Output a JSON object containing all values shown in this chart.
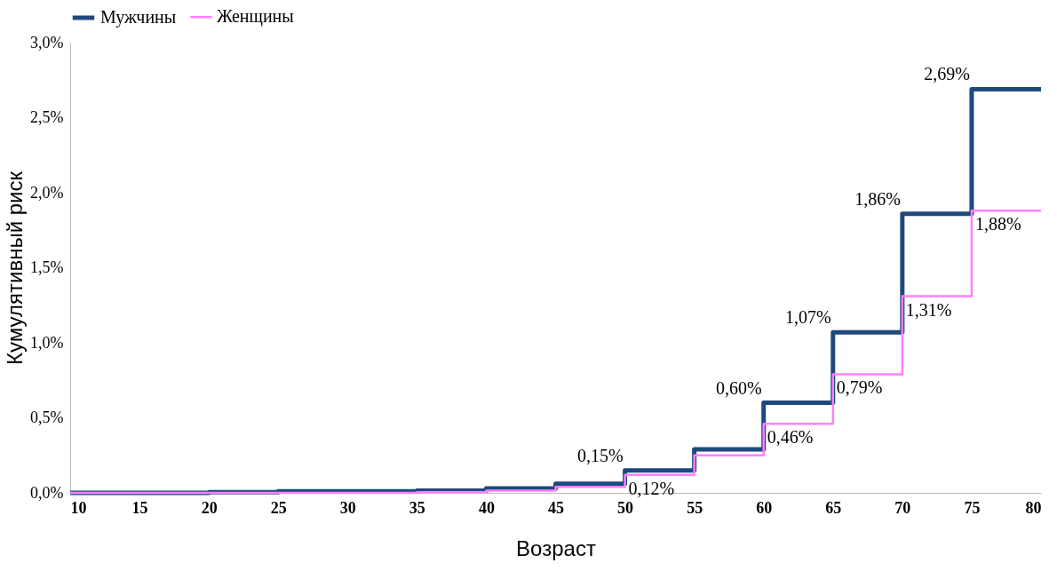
{
  "chart_data": {
    "type": "step",
    "xlabel": "Возраст",
    "ylabel": "Кумулятивный риск",
    "x": [
      10,
      15,
      20,
      25,
      30,
      35,
      40,
      45,
      50,
      55,
      60,
      65,
      70,
      75,
      80
    ],
    "xlim": [
      10,
      80
    ],
    "xticks": [
      10,
      15,
      20,
      25,
      30,
      35,
      40,
      45,
      50,
      55,
      60,
      65,
      70,
      75,
      80
    ],
    "ylim": [
      0,
      3
    ],
    "yticks": [
      {
        "value": 0,
        "label": "0,0%"
      },
      {
        "value": 0.5,
        "label": "0,5%"
      },
      {
        "value": 1,
        "label": "1,0%"
      },
      {
        "value": 1.5,
        "label": "1,5%"
      },
      {
        "value": 2,
        "label": "2,0%"
      },
      {
        "value": 2.5,
        "label": "2,5%"
      },
      {
        "value": 3,
        "label": "3,0%"
      }
    ],
    "grid": false,
    "legend": "top",
    "marker": "none",
    "series": [
      {
        "name": "Мужчины",
        "color": "#1f497d",
        "values": [
          0,
          0,
          0.005,
          0.01,
          0.01,
          0.015,
          0.03,
          0.06,
          0.15,
          0.29,
          0.6,
          1.07,
          1.86,
          2.69,
          2.69
        ],
        "value_labels": [
          null,
          null,
          null,
          null,
          null,
          null,
          null,
          null,
          "0,15%",
          null,
          "0,60%",
          "1,07%",
          "1,86%",
          "2,69%",
          null
        ]
      },
      {
        "name": "Женщины",
        "color": "#ff80ff",
        "values": [
          0,
          0,
          0,
          0,
          0,
          0.005,
          0.015,
          0.04,
          0.12,
          0.25,
          0.46,
          0.79,
          1.31,
          1.88,
          1.88
        ],
        "value_labels": [
          null,
          null,
          null,
          null,
          null,
          null,
          null,
          null,
          "0,12%",
          null,
          "0,46%",
          "0,79%",
          "1,31%",
          "1,88%",
          null
        ]
      }
    ]
  }
}
